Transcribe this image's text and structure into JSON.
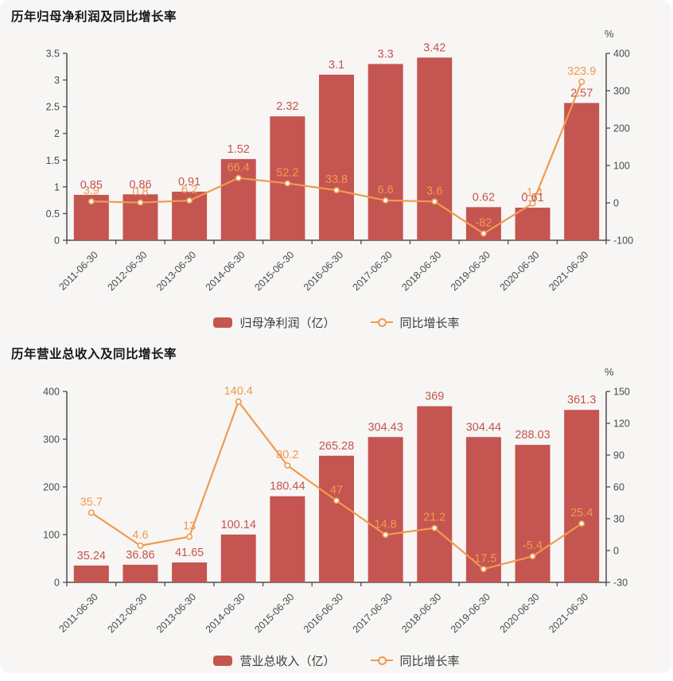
{
  "page": {
    "background": "#ffffff",
    "card_background": "#f7f6f4"
  },
  "colors": {
    "bar": "#c45550",
    "bar_label": "#c45550",
    "line": "#f09a50",
    "line_label": "#f09a50",
    "axis": "#4d4d4d",
    "tick_text": "#4a4a4a",
    "title_text": "#161616",
    "legend_text": "#3d3d3d"
  },
  "chart_data": [
    {
      "type": "bar+line",
      "title": "历年归母净利润及同比增长率",
      "categories": [
        "2011-06-30",
        "2012-06-30",
        "2013-06-30",
        "2014-06-30",
        "2015-06-30",
        "2016-06-30",
        "2017-06-30",
        "2018-06-30",
        "2019-06-30",
        "2020-06-30",
        "2021-06-30"
      ],
      "series": [
        {
          "name": "归母净利润（亿）",
          "type": "bar",
          "axis": "left",
          "values": [
            0.85,
            0.86,
            0.91,
            1.52,
            2.32,
            3.1,
            3.3,
            3.42,
            0.62,
            0.61,
            2.57
          ],
          "labels": [
            "0.85",
            "0.86",
            "0.91",
            "1.52",
            "2.32",
            "3.1",
            "3.3",
            "3.42",
            "0.62",
            "0.61",
            "2.57"
          ]
        },
        {
          "name": "同比增长率",
          "type": "line",
          "axis": "right",
          "values": [
            3.9,
            0.8,
            6.2,
            66.4,
            52.2,
            33.8,
            6.6,
            3.6,
            -82,
            -1.4,
            323.9
          ],
          "labels": [
            "3.9",
            "0.8",
            "6.2",
            "66.4",
            "52.2",
            "33.8",
            "6.6",
            "3.6",
            "-82",
            "-1.4",
            "323.9"
          ]
        }
      ],
      "left_axis": {
        "min": 0,
        "max": 3.5,
        "ticks": [
          "3.5",
          "3",
          "2.5",
          "2",
          "1.5",
          "1",
          "0.5",
          "0"
        ]
      },
      "right_axis": {
        "min": -100,
        "max": 400,
        "unit": "%",
        "ticks": [
          "400",
          "300",
          "200",
          "100",
          "0",
          "-100"
        ]
      },
      "grid": false,
      "legend_position": "bottom",
      "legend": [
        {
          "label": "归母净利润（亿）",
          "marker": "bar"
        },
        {
          "label": "同比增长率",
          "marker": "line"
        }
      ]
    },
    {
      "type": "bar+line",
      "title": "历年营业总收入及同比增长率",
      "categories": [
        "2011-06-30",
        "2012-06-30",
        "2013-06-30",
        "2014-06-30",
        "2015-06-30",
        "2016-06-30",
        "2017-06-30",
        "2018-06-30",
        "2019-06-30",
        "2020-06-30",
        "2021-06-30"
      ],
      "series": [
        {
          "name": "营业总收入（亿）",
          "type": "bar",
          "axis": "left",
          "values": [
            35.24,
            36.86,
            41.65,
            100.14,
            180.44,
            265.28,
            304.43,
            369,
            304.44,
            288.03,
            361.3
          ],
          "labels": [
            "35.24",
            "36.86",
            "41.65",
            "100.14",
            "180.44",
            "265.28",
            "304.43",
            "369",
            "304.44",
            "288.03",
            "361.3"
          ]
        },
        {
          "name": "同比增长率",
          "type": "line",
          "axis": "right",
          "values": [
            35.7,
            4.6,
            13,
            140.4,
            80.2,
            47,
            14.8,
            21.2,
            -17.5,
            -5.4,
            25.4
          ],
          "labels": [
            "35.7",
            "4.6",
            "13",
            "140.4",
            "80.2",
            "47",
            "14.8",
            "21.2",
            "-17.5",
            "-5.4",
            "25.4"
          ]
        }
      ],
      "left_axis": {
        "min": 0,
        "max": 400,
        "ticks": [
          "400",
          "300",
          "200",
          "100",
          "0"
        ]
      },
      "right_axis": {
        "min": -30,
        "max": 150,
        "unit": "%",
        "ticks": [
          "150",
          "120",
          "90",
          "60",
          "30",
          "0",
          "-30"
        ]
      },
      "grid": false,
      "legend_position": "bottom",
      "legend": [
        {
          "label": "营业总收入（亿）",
          "marker": "bar"
        },
        {
          "label": "同比增长率",
          "marker": "line"
        }
      ]
    }
  ]
}
